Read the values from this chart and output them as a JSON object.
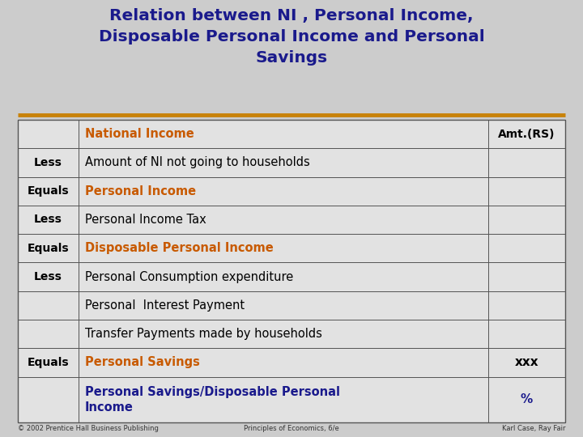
{
  "title_line1": "Relation between NI , Personal Income,",
  "title_line2": "Disposable Personal Income and Personal",
  "title_line3": "Savings",
  "title_color": "#1a1a8c",
  "bg_color": "#cccccc",
  "separator_color": "#c8820a",
  "rows": [
    {
      "col1": "National Income",
      "col2": "",
      "col1_color": "#c85a00",
      "col2_color": "#000000",
      "col1_bold": true,
      "header": true,
      "label": ""
    },
    {
      "col1": "Amount of NI not going to households",
      "col2": "",
      "col1_color": "#000000",
      "col2_color": "#000000",
      "col1_bold": false,
      "header": false,
      "label": "Less"
    },
    {
      "col1": "Personal Income",
      "col2": "",
      "col1_color": "#c85a00",
      "col2_color": "#000000",
      "col1_bold": true,
      "header": false,
      "label": "Equals"
    },
    {
      "col1": "Personal Income Tax",
      "col2": "",
      "col1_color": "#000000",
      "col2_color": "#000000",
      "col1_bold": false,
      "header": false,
      "label": "Less"
    },
    {
      "col1": "Disposable Personal Income",
      "col2": "",
      "col1_color": "#c85a00",
      "col2_color": "#000000",
      "col1_bold": true,
      "header": false,
      "label": "Equals"
    },
    {
      "col1": "Personal Consumption expenditure",
      "col2": "",
      "col1_color": "#000000",
      "col2_color": "#000000",
      "col1_bold": false,
      "header": false,
      "label": "Less"
    },
    {
      "col1": "Personal  Interest Payment",
      "col2": "",
      "col1_color": "#000000",
      "col2_color": "#000000",
      "col1_bold": false,
      "header": false,
      "label": ""
    },
    {
      "col1": "Transfer Payments made by households",
      "col2": "",
      "col1_color": "#000000",
      "col2_color": "#000000",
      "col1_bold": false,
      "header": false,
      "label": ""
    },
    {
      "col1": "Personal Savings",
      "col2": "xxx",
      "col1_color": "#c85a00",
      "col2_color": "#000000",
      "col1_bold": true,
      "header": false,
      "label": "Equals"
    },
    {
      "col1": "Personal Savings/Disposable Personal\nIncome",
      "col2": "%",
      "col1_color": "#1a1a8c",
      "col2_color": "#1a1a8c",
      "col1_bold": true,
      "header": false,
      "label": ""
    }
  ],
  "header_amt": "Amt.(RS)",
  "footer_left": "© 2002 Prentice Hall Business Publishing",
  "footer_mid": "Principles of Economics, 6/e",
  "footer_right": "Karl Case, Ray Fair"
}
